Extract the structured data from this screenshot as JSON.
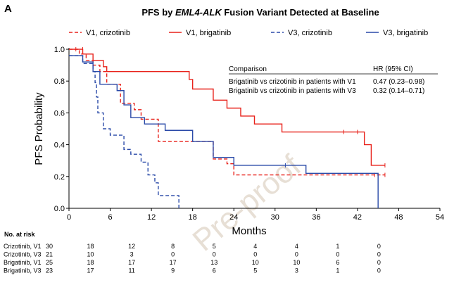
{
  "panel_label": "A",
  "title_prefix": "PFS by ",
  "title_italic": "EML4-ALK",
  "title_suffix": " Fusion Variant Detected at Baseline",
  "watermark": "Pre-proof",
  "colors": {
    "red": "#e8221b",
    "blue": "#2a4aa8",
    "axis": "#000000",
    "watermark": "#e7dfd5"
  },
  "chart_data": {
    "type": "line",
    "subtype": "kaplan-meier",
    "xlabel": "Months",
    "ylabel": "PFS Probability",
    "xlim": [
      0,
      54
    ],
    "ylim": [
      0,
      1.0
    ],
    "xticks": [
      0,
      6,
      12,
      18,
      24,
      30,
      36,
      42,
      48,
      54
    ],
    "yticks": [
      0.0,
      0.2,
      0.4,
      0.6,
      0.8,
      1.0
    ],
    "ytick_labels": [
      "0.0",
      "0.2",
      "0.4",
      "0.6",
      "0.8",
      "1.0"
    ],
    "legend_position": "top",
    "series": [
      {
        "name": "V1, crizotinib",
        "color": "red",
        "dash": true,
        "steps": [
          [
            0,
            1.0
          ],
          [
            1.5,
            0.97
          ],
          [
            2.5,
            0.93
          ],
          [
            3.5,
            0.9
          ],
          [
            4.5,
            0.86
          ],
          [
            5.5,
            0.78
          ],
          [
            7.5,
            0.66
          ],
          [
            9.5,
            0.62
          ],
          [
            10.5,
            0.56
          ],
          [
            13,
            0.42
          ],
          [
            21,
            0.31
          ],
          [
            23,
            0.28
          ],
          [
            24,
            0.21
          ],
          [
            46,
            0.21
          ]
        ],
        "censors": [
          [
            1,
            1.0
          ],
          [
            44.5,
            0.21
          ],
          [
            46,
            0.21
          ]
        ]
      },
      {
        "name": "V1, brigatinib",
        "color": "red",
        "dash": false,
        "steps": [
          [
            0,
            1.0
          ],
          [
            2,
            0.97
          ],
          [
            3.5,
            0.93
          ],
          [
            5,
            0.89
          ],
          [
            5.5,
            0.86
          ],
          [
            17.5,
            0.81
          ],
          [
            18,
            0.75
          ],
          [
            21,
            0.68
          ],
          [
            23,
            0.63
          ],
          [
            25,
            0.58
          ],
          [
            27,
            0.53
          ],
          [
            31,
            0.48
          ],
          [
            43,
            0.4
          ],
          [
            44,
            0.27
          ],
          [
            46,
            0.27
          ]
        ],
        "censors": [
          [
            2,
            1.0
          ],
          [
            40,
            0.48
          ],
          [
            42,
            0.48
          ],
          [
            46,
            0.27
          ]
        ]
      },
      {
        "name": "V3, crizotinib",
        "color": "blue",
        "dash": true,
        "steps": [
          [
            0,
            0.96
          ],
          [
            2,
            0.91
          ],
          [
            3.5,
            0.86
          ],
          [
            3.8,
            0.79
          ],
          [
            4,
            0.7
          ],
          [
            4.2,
            0.6
          ],
          [
            5,
            0.5
          ],
          [
            6,
            0.46
          ],
          [
            8,
            0.37
          ],
          [
            9,
            0.34
          ],
          [
            10.5,
            0.29
          ],
          [
            11.5,
            0.21
          ],
          [
            12.5,
            0.16
          ],
          [
            13,
            0.08
          ],
          [
            16,
            0.0
          ]
        ],
        "censors": []
      },
      {
        "name": "V3, brigatinib",
        "color": "blue",
        "dash": false,
        "steps": [
          [
            0,
            0.96
          ],
          [
            2,
            0.92
          ],
          [
            3.5,
            0.86
          ],
          [
            4.5,
            0.78
          ],
          [
            7,
            0.74
          ],
          [
            8,
            0.65
          ],
          [
            9,
            0.57
          ],
          [
            11,
            0.53
          ],
          [
            14,
            0.49
          ],
          [
            18,
            0.42
          ],
          [
            21,
            0.32
          ],
          [
            24,
            0.27
          ],
          [
            31,
            0.27
          ],
          [
            34.5,
            0.22
          ],
          [
            45,
            0.0
          ]
        ],
        "censors": [
          [
            31.5,
            0.27
          ]
        ]
      }
    ],
    "hr_table": {
      "headers": [
        "Comparison",
        "HR (95% CI)"
      ],
      "rows": [
        [
          "Brigatinib vs crizotinib in patients with V1",
          "0.47 (0.23–0.98)"
        ],
        [
          "Brigatinib vs crizotinib in patients with V3",
          "0.32 (0.14–0.71)"
        ]
      ]
    },
    "risk_table": {
      "title": "No. at risk",
      "timepoints": [
        0,
        6,
        12,
        18,
        24,
        30,
        36,
        42,
        48
      ],
      "rows": [
        {
          "label": "Crizotinib, V1",
          "values": [
            "30",
            "18",
            "12",
            "8",
            "5",
            "4",
            "4",
            "1",
            "0"
          ]
        },
        {
          "label": "Crizotinib, V3",
          "values": [
            "21",
            "10",
            "3",
            "0",
            "0",
            "0",
            "0",
            "0",
            "0"
          ]
        },
        {
          "label": "Brigatinib, V1",
          "values": [
            "25",
            "18",
            "17",
            "17",
            "13",
            "10",
            "10",
            "6",
            "0"
          ]
        },
        {
          "label": "Brigatinib, V3",
          "values": [
            "23",
            "17",
            "11",
            "9",
            "6",
            "5",
            "3",
            "1",
            "0"
          ]
        }
      ]
    }
  }
}
